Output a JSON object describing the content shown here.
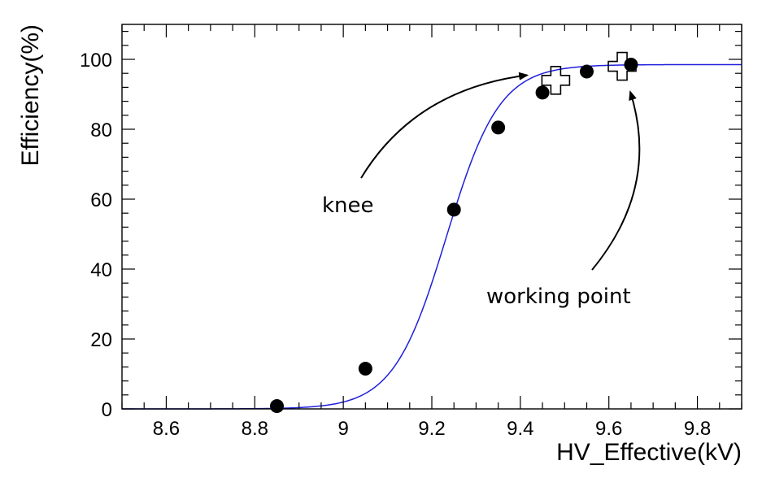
{
  "chart_data": {
    "type": "scatter",
    "title": "",
    "xlabel": "HV_Effective(kV)",
    "ylabel": "Efficiency(%)",
    "xlim": [
      8.5,
      9.9
    ],
    "ylim": [
      0,
      110
    ],
    "grid": false,
    "x_ticks": [
      8.6,
      8.8,
      9.0,
      9.2,
      9.4,
      9.6,
      9.8
    ],
    "x_tick_labels": [
      "8.6",
      "8.8",
      "9",
      "9.2",
      "9.4",
      "9.6",
      "9.8"
    ],
    "y_ticks": [
      0,
      20,
      40,
      60,
      80,
      100
    ],
    "y_tick_labels": [
      "0",
      "20",
      "40",
      "60",
      "80",
      "100"
    ],
    "series": [
      {
        "kind": "points",
        "color": "#000000",
        "x": [
          8.85,
          9.05,
          9.25,
          9.35,
          9.45,
          9.55,
          9.65
        ],
        "y": [
          0.8,
          11.5,
          57,
          80.5,
          90.5,
          96.5,
          98.5
        ]
      },
      {
        "kind": "fit",
        "color": "#1f1fdd",
        "function": "sigmoid",
        "params": {
          "emax": 98.5,
          "lambda": 16.7,
          "hv50": 9.233
        },
        "x_range": [
          8.5,
          9.9
        ]
      },
      {
        "kind": "markers",
        "marker": "open-cross",
        "color": "#000000",
        "x": [
          9.48,
          9.63
        ],
        "y": [
          94,
          98
        ]
      }
    ],
    "annotations": [
      {
        "text": "knee",
        "target": [
          9.43,
          95
        ]
      },
      {
        "text": "working point",
        "target": [
          9.63,
          90
        ]
      }
    ]
  }
}
